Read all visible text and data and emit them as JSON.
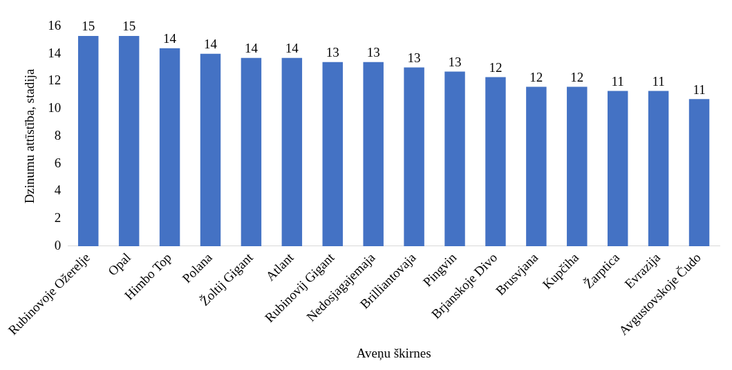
{
  "chart_data": {
    "type": "bar",
    "xlabel": "Aveņu škirnes",
    "ylabel": "Dzinumu attīstība, stadija",
    "categories": [
      "Rubinovoje Ožerelje",
      "Opal",
      "Himbo Top",
      "Polana",
      "Žoltij Gigant",
      "Atlant",
      "Rubinovij Gigant",
      "Nedosjagajemaja",
      "Brilliantovaja",
      "Pingvin",
      "Brjanskoje Divo",
      "Brusvjana",
      "Kupčiha",
      "Žarptica",
      "Evrazija",
      "Avgustovskoje Čudo"
    ],
    "values": [
      15.3,
      15.3,
      14.4,
      14.0,
      13.7,
      13.7,
      13.4,
      13.4,
      13.0,
      12.7,
      12.3,
      11.6,
      11.6,
      11.3,
      11.3,
      10.7
    ],
    "value_labels": [
      "15",
      "15",
      "14",
      "14",
      "14",
      "14",
      "13",
      "13",
      "13",
      "13",
      "12",
      "12",
      "12",
      "11",
      "11",
      "11"
    ],
    "color": "#4472c4",
    "ylim": [
      0,
      16
    ],
    "yticks": [
      0,
      2,
      4,
      6,
      8,
      10,
      12,
      14,
      16
    ],
    "grid": false,
    "legend": false
  }
}
